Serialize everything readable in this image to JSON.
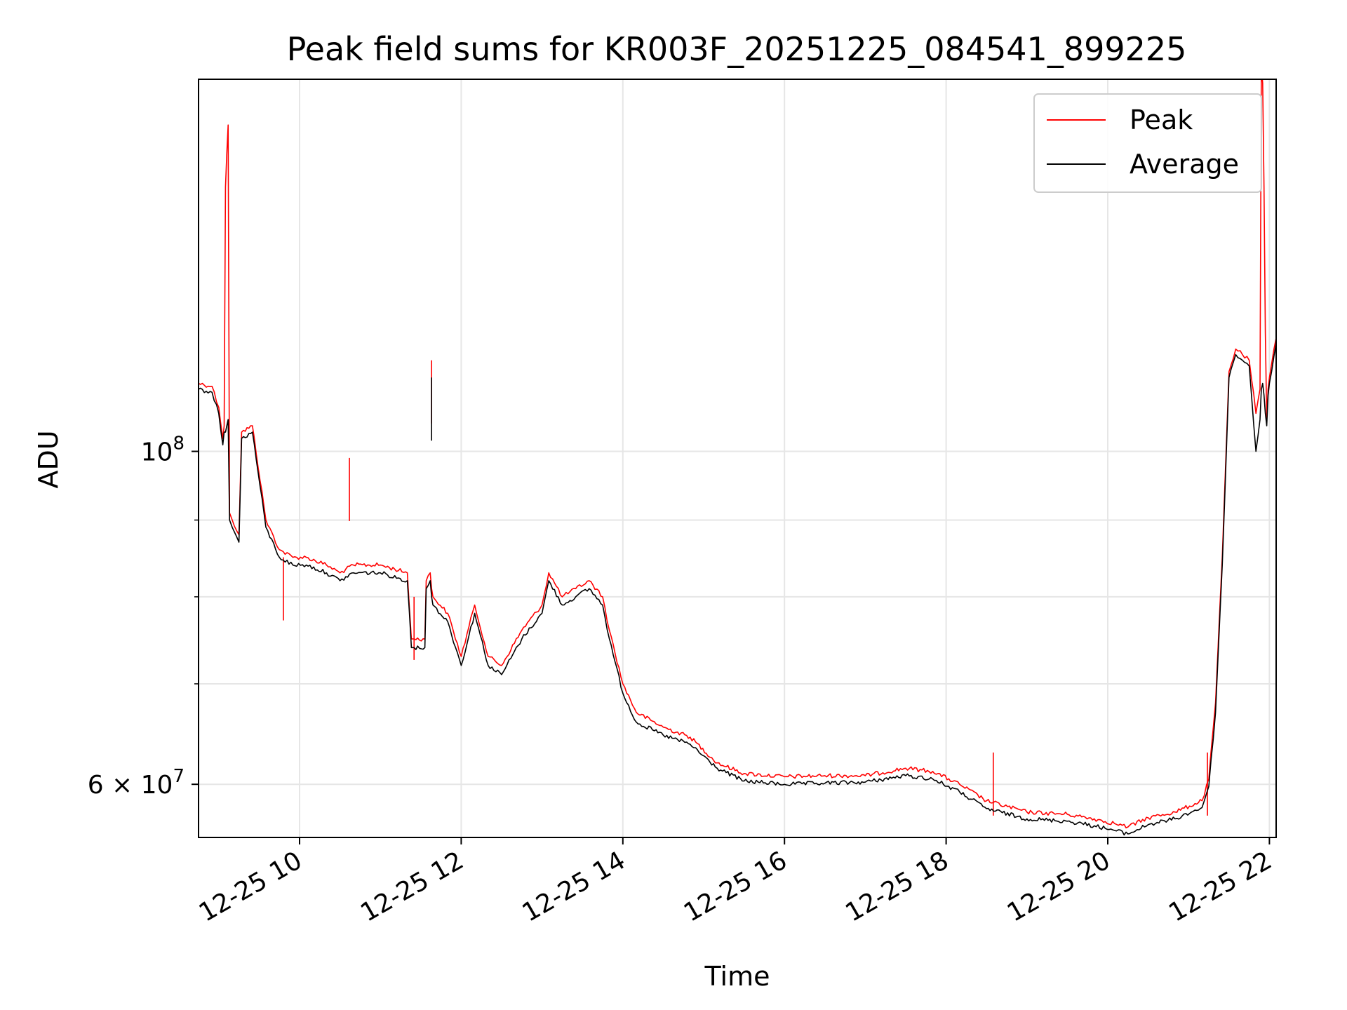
{
  "chart_data": {
    "type": "line",
    "title": "Peak field sums for KR003F_20251225_084541_899225",
    "xlabel": "Time",
    "ylabel": "ADU",
    "yscale": "log",
    "grid": true,
    "legend_position": "top-right",
    "xlim": [
      "2025-12-25 08:45",
      "2025-12-25 22:05"
    ],
    "ylim": [
      55300000,
      177000000
    ],
    "x_ticks": [
      {
        "value": "2025-12-25 10:00",
        "label": "12-25 10"
      },
      {
        "value": "2025-12-25 12:00",
        "label": "12-25 12"
      },
      {
        "value": "2025-12-25 14:00",
        "label": "12-25 14"
      },
      {
        "value": "2025-12-25 16:00",
        "label": "12-25 16"
      },
      {
        "value": "2025-12-25 18:00",
        "label": "12-25 18"
      },
      {
        "value": "2025-12-25 20:00",
        "label": "12-25 20"
      },
      {
        "value": "2025-12-25 22:00",
        "label": "12-25 22"
      }
    ],
    "y_ticks_major": [
      {
        "value": 60000000,
        "label": "6 × 10⁷",
        "mantissa": "6 × 10",
        "exponent": "7"
      },
      {
        "value": 100000000,
        "label": "10⁸",
        "mantissa": "10",
        "exponent": "8"
      }
    ],
    "y_ticks_minor": [
      70000000,
      80000000,
      90000000
    ],
    "series": [
      {
        "name": "Peak",
        "color": "#ff0000",
        "x": [
          "2025-12-25 08:45",
          "2025-12-25 08:55",
          "2025-12-25 09:00",
          "2025-12-25 09:03",
          "2025-12-25 09:04",
          "2025-12-25 09:05",
          "2025-12-25 09:06",
          "2025-12-25 09:07",
          "2025-12-25 09:08",
          "2025-12-25 09:10",
          "2025-12-25 09:15",
          "2025-12-25 09:17",
          "2025-12-25 09:25",
          "2025-12-25 09:35",
          "2025-12-25 09:45",
          "2025-12-25 09:55",
          "2025-12-25 10:05",
          "2025-12-25 10:20",
          "2025-12-25 10:30",
          "2025-12-25 10:40",
          "2025-12-25 11:00",
          "2025-12-25 11:20",
          "2025-12-25 11:23",
          "2025-12-25 11:25",
          "2025-12-25 11:33",
          "2025-12-25 11:34",
          "2025-12-25 11:37",
          "2025-12-25 11:38",
          "2025-12-25 11:39",
          "2025-12-25 11:50",
          "2025-12-25 12:00",
          "2025-12-25 12:10",
          "2025-12-25 12:20",
          "2025-12-25 12:30",
          "2025-12-25 12:45",
          "2025-12-25 13:00",
          "2025-12-25 13:05",
          "2025-12-25 13:15",
          "2025-12-25 13:25",
          "2025-12-25 13:35",
          "2025-12-25 13:45",
          "2025-12-25 13:50",
          "2025-12-25 14:00",
          "2025-12-25 14:10",
          "2025-12-25 14:30",
          "2025-12-25 14:50",
          "2025-12-25 15:10",
          "2025-12-25 15:30",
          "2025-12-25 16:00",
          "2025-12-25 16:30",
          "2025-12-25 17:00",
          "2025-12-25 17:30",
          "2025-12-25 17:50",
          "2025-12-25 18:10",
          "2025-12-25 18:30",
          "2025-12-25 19:00",
          "2025-12-25 19:30",
          "2025-12-25 19:50",
          "2025-12-25 20:05",
          "2025-12-25 20:15",
          "2025-12-25 20:30",
          "2025-12-25 20:50",
          "2025-12-25 21:10",
          "2025-12-25 21:15",
          "2025-12-25 21:20",
          "2025-12-25 21:25",
          "2025-12-25 21:30",
          "2025-12-25 21:35",
          "2025-12-25 21:40",
          "2025-12-25 21:45",
          "2025-12-25 21:50",
          "2025-12-25 21:53",
          "2025-12-25 21:54",
          "2025-12-25 21:55",
          "2025-12-25 21:56",
          "2025-12-25 21:57",
          "2025-12-25 21:58",
          "2025-12-25 21:59",
          "2025-12-25 22:00",
          "2025-12-25 22:05"
        ],
        "values": [
          111000000,
          110500000,
          107000000,
          102000000,
          104000000,
          150000000,
          158000000,
          165000000,
          91000000,
          90000000,
          88000000,
          103000000,
          104000000,
          90000000,
          86000000,
          85000000,
          85000000,
          84000000,
          83000000,
          84000000,
          84000000,
          83000000,
          75000000,
          75000000,
          75000000,
          82000000,
          83000000,
          81000000,
          80000000,
          78000000,
          73000000,
          79000000,
          73000000,
          72000000,
          76000000,
          79000000,
          83000000,
          80000000,
          81000000,
          82000000,
          80000000,
          76000000,
          70000000,
          67000000,
          65500000,
          64500000,
          62000000,
          61000000,
          60700000,
          60800000,
          60800000,
          61500000,
          61200000,
          60000000,
          58500000,
          57500000,
          57300000,
          56900000,
          56500000,
          56200000,
          57000000,
          57500000,
          58500000,
          60500000,
          68000000,
          85000000,
          113000000,
          117000000,
          116000000,
          115000000,
          106000000,
          110000000,
          180000000,
          176000000,
          150000000,
          120000000,
          105000000,
          110000000,
          112000000,
          119000000
        ],
        "spikes": [
          {
            "x": "2025-12-25 09:48",
            "value": 85000000
          },
          {
            "x": "2025-12-25 10:37",
            "value": 99000000
          },
          {
            "x": "2025-12-25 11:25",
            "value": 80000000
          },
          {
            "x": "2025-12-25 11:38",
            "value": 115000000
          },
          {
            "x": "2025-12-25 18:35",
            "value": 63000000
          },
          {
            "x": "2025-12-25 21:14",
            "value": 63000000
          }
        ]
      },
      {
        "name": "Average",
        "color": "#000000",
        "x": [
          "2025-12-25 08:45",
          "2025-12-25 08:55",
          "2025-12-25 09:00",
          "2025-12-25 09:03",
          "2025-12-25 09:04",
          "2025-12-25 09:05",
          "2025-12-25 09:06",
          "2025-12-25 09:07",
          "2025-12-25 09:08",
          "2025-12-25 09:10",
          "2025-12-25 09:15",
          "2025-12-25 09:17",
          "2025-12-25 09:25",
          "2025-12-25 09:35",
          "2025-12-25 09:45",
          "2025-12-25 09:55",
          "2025-12-25 10:05",
          "2025-12-25 10:20",
          "2025-12-25 10:30",
          "2025-12-25 10:40",
          "2025-12-25 11:00",
          "2025-12-25 11:20",
          "2025-12-25 11:23",
          "2025-12-25 11:25",
          "2025-12-25 11:33",
          "2025-12-25 11:34",
          "2025-12-25 11:37",
          "2025-12-25 11:38",
          "2025-12-25 11:39",
          "2025-12-25 11:50",
          "2025-12-25 12:00",
          "2025-12-25 12:10",
          "2025-12-25 12:20",
          "2025-12-25 12:30",
          "2025-12-25 12:45",
          "2025-12-25 13:00",
          "2025-12-25 13:05",
          "2025-12-25 13:15",
          "2025-12-25 13:25",
          "2025-12-25 13:35",
          "2025-12-25 13:45",
          "2025-12-25 13:50",
          "2025-12-25 14:00",
          "2025-12-25 14:10",
          "2025-12-25 14:30",
          "2025-12-25 14:50",
          "2025-12-25 15:10",
          "2025-12-25 15:30",
          "2025-12-25 16:00",
          "2025-12-25 16:30",
          "2025-12-25 17:00",
          "2025-12-25 17:30",
          "2025-12-25 17:50",
          "2025-12-25 18:10",
          "2025-12-25 18:30",
          "2025-12-25 19:00",
          "2025-12-25 19:30",
          "2025-12-25 19:50",
          "2025-12-25 20:05",
          "2025-12-25 20:15",
          "2025-12-25 20:30",
          "2025-12-25 20:50",
          "2025-12-25 21:10",
          "2025-12-25 21:15",
          "2025-12-25 21:20",
          "2025-12-25 21:25",
          "2025-12-25 21:30",
          "2025-12-25 21:35",
          "2025-12-25 21:40",
          "2025-12-25 21:45",
          "2025-12-25 21:50",
          "2025-12-25 21:53",
          "2025-12-25 21:54",
          "2025-12-25 21:55",
          "2025-12-25 21:56",
          "2025-12-25 21:57",
          "2025-12-25 21:58",
          "2025-12-25 21:59",
          "2025-12-25 22:00",
          "2025-12-25 22:05"
        ],
        "values": [
          110000000,
          109500000,
          106000000,
          101000000,
          103000000,
          103000000,
          104000000,
          105000000,
          90000000,
          89000000,
          87000000,
          102000000,
          103000000,
          89000000,
          85000000,
          84000000,
          84000000,
          83000000,
          82000000,
          83000000,
          83000000,
          82000000,
          74000000,
          74000000,
          74000000,
          81000000,
          82000000,
          80000000,
          79000000,
          77000000,
          72000000,
          78000000,
          72000000,
          71000000,
          75000000,
          78000000,
          82000000,
          79000000,
          80000000,
          81000000,
          79000000,
          75000000,
          69000000,
          66000000,
          64700000,
          63800000,
          61500000,
          60300000,
          60000000,
          60100000,
          60200000,
          60800000,
          60500000,
          59300000,
          57800000,
          56900000,
          56700000,
          56300000,
          55900000,
          55600000,
          56400000,
          56900000,
          57900000,
          59800000,
          67000000,
          84000000,
          112000000,
          116000000,
          115000000,
          114000000,
          100000000,
          105000000,
          110000000,
          111000000,
          109000000,
          106000000,
          104000000,
          109000000,
          111000000,
          118000000
        ],
        "spikes": [
          {
            "x": "2025-12-25 11:38",
            "value": 112000000
          }
        ]
      }
    ]
  }
}
